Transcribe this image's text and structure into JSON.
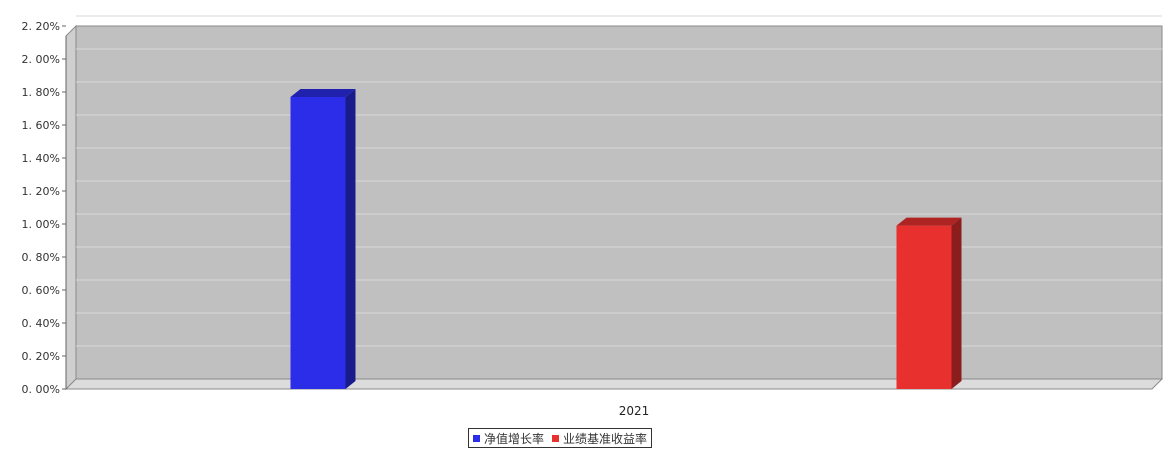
{
  "chart_data": {
    "type": "bar",
    "categories": [
      "2021"
    ],
    "series": [
      {
        "name": "净值增长率",
        "values": [
          1.77
        ],
        "color": "#2b2de8"
      },
      {
        "name": "业绩基准收益率",
        "values": [
          0.99
        ],
        "color": "#e8302e"
      }
    ],
    "ylim": [
      0,
      2.2
    ],
    "yticks": [
      "0. 00%",
      "0. 20%",
      "0. 40%",
      "0. 60%",
      "0. 80%",
      "1. 00%",
      "1. 20%",
      "1. 40%",
      "1. 60%",
      "1. 80%",
      "2. 00%",
      "2. 20%"
    ],
    "ytick_values": [
      0,
      0.2,
      0.4,
      0.6,
      0.8,
      1.0,
      1.2,
      1.4,
      1.6,
      1.8,
      2.0,
      2.2
    ],
    "grid": true,
    "legend_position": "bottom-center",
    "plot_background": "#c0c0c0"
  }
}
